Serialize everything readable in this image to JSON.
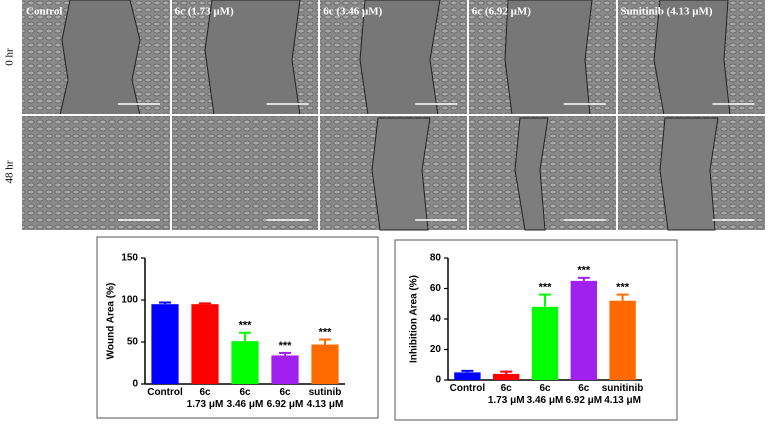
{
  "micrographs": {
    "columns": [
      "Control",
      "6c (1.73 μM)",
      "6c (3.46 μM)",
      "6c (6.92 μM)",
      "Sunitinib (4.13 μM)"
    ],
    "rows": [
      "0 hr",
      "48 hr"
    ]
  },
  "chart_data": [
    {
      "type": "bar",
      "y_label": "Wound Area (%)",
      "categories": [
        "Control",
        "6c\n1.73 μM",
        "6c\n3.46 μM",
        "6c\n6.92 μM",
        "sutinib\n4.13 μM"
      ],
      "values": [
        95,
        95,
        51,
        34,
        47
      ],
      "errors": [
        2,
        1,
        10,
        3,
        6
      ],
      "colors": [
        "#0000ff",
        "#ff0000",
        "#00ff00",
        "#a020f0",
        "#ff6a00"
      ],
      "significance": [
        null,
        null,
        "***",
        "***",
        "***"
      ],
      "ylim": [
        0,
        150
      ],
      "yticks": [
        0,
        50,
        100,
        150
      ]
    },
    {
      "type": "bar",
      "y_label": "Inhibition Area (%)",
      "categories": [
        "Control",
        "6c\n1.73 μM",
        "6c\n3.46 μM",
        "6c\n6.92 μM",
        "sunitinib\n4.13 μM"
      ],
      "values": [
        5,
        4,
        48,
        65,
        52
      ],
      "errors": [
        1,
        1.5,
        8,
        2,
        4
      ],
      "colors": [
        "#0000ff",
        "#ff0000",
        "#00ff00",
        "#a020f0",
        "#ff6a00"
      ],
      "significance": [
        null,
        null,
        "***",
        "***",
        "***"
      ],
      "ylim": [
        0,
        80
      ],
      "yticks": [
        0,
        20,
        40,
        60,
        80
      ]
    }
  ]
}
